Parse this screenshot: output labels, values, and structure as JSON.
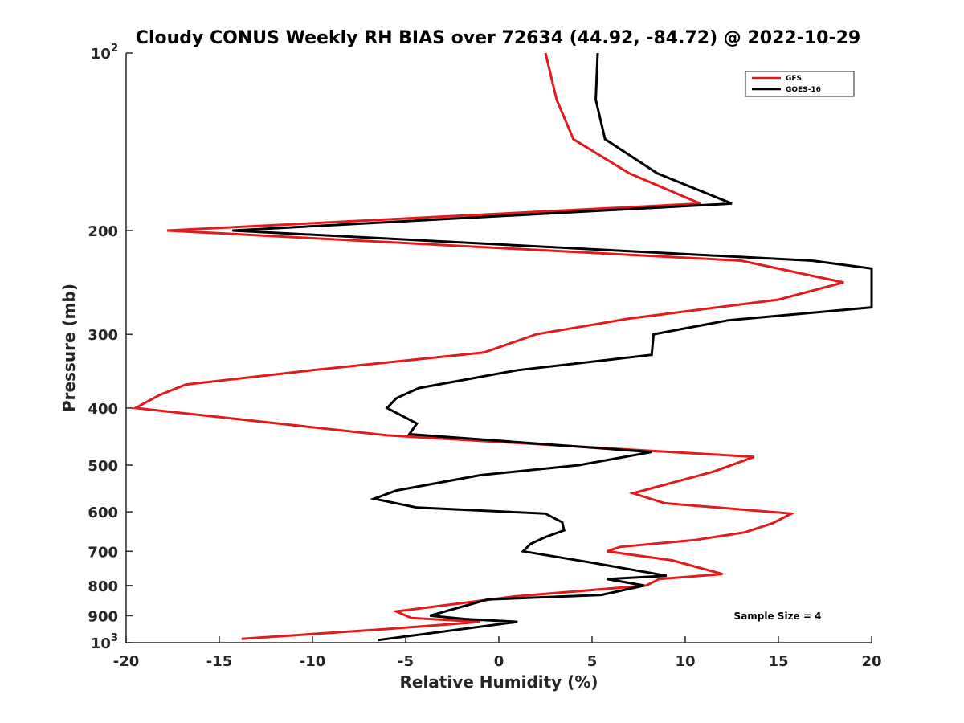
{
  "chart_data": {
    "type": "line",
    "title": "Cloudy CONUS Weekly RH BIAS over 72634 (44.92, -84.72) @ 2022-10-29",
    "xlabel": "Relative Humidity (%)",
    "ylabel": "Pressure (mb)",
    "xlim": [
      -20,
      20
    ],
    "ylim": [
      100,
      1000
    ],
    "y_scale": "log",
    "y_reversed": true,
    "grid": false,
    "legend_position": "top-right",
    "x_ticks": [
      -20,
      -15,
      -10,
      -5,
      0,
      5,
      10,
      15,
      20
    ],
    "y_ticks": [
      {
        "value": 100,
        "base": "10",
        "exp": "2"
      },
      {
        "value": 200,
        "label": "200"
      },
      {
        "value": 300,
        "label": "300"
      },
      {
        "value": 400,
        "label": "400"
      },
      {
        "value": 500,
        "label": "500"
      },
      {
        "value": 600,
        "label": "600"
      },
      {
        "value": 700,
        "label": "700"
      },
      {
        "value": 800,
        "label": "800"
      },
      {
        "value": 900,
        "label": "900"
      },
      {
        "value": 1000,
        "base": "10",
        "exp": "3"
      }
    ],
    "series": [
      {
        "name": "GFS",
        "color": "#e31a1c",
        "points": [
          {
            "x": 2.5,
            "p": 100
          },
          {
            "x": 3.1,
            "p": 120
          },
          {
            "x": 4.0,
            "p": 140
          },
          {
            "x": 7.0,
            "p": 160
          },
          {
            "x": 10.8,
            "p": 180
          },
          {
            "x": -17.8,
            "p": 200
          },
          {
            "x": 13.0,
            "p": 225
          },
          {
            "x": 18.5,
            "p": 245
          },
          {
            "x": 15.0,
            "p": 262
          },
          {
            "x": 7.0,
            "p": 282
          },
          {
            "x": 2.0,
            "p": 300
          },
          {
            "x": -0.8,
            "p": 322
          },
          {
            "x": -10.0,
            "p": 345
          },
          {
            "x": -16.8,
            "p": 365
          },
          {
            "x": -18.2,
            "p": 380
          },
          {
            "x": -19.5,
            "p": 400
          },
          {
            "x": -6.0,
            "p": 445
          },
          {
            "x": 13.7,
            "p": 484
          },
          {
            "x": 11.5,
            "p": 513
          },
          {
            "x": 7.2,
            "p": 558
          },
          {
            "x": 8.9,
            "p": 580
          },
          {
            "x": 15.7,
            "p": 604
          },
          {
            "x": 14.7,
            "p": 627
          },
          {
            "x": 13.2,
            "p": 650
          },
          {
            "x": 10.5,
            "p": 670
          },
          {
            "x": 6.5,
            "p": 688
          },
          {
            "x": 5.8,
            "p": 700
          },
          {
            "x": 9.3,
            "p": 725
          },
          {
            "x": 12.0,
            "p": 765
          },
          {
            "x": 8.6,
            "p": 780
          },
          {
            "x": 7.9,
            "p": 800
          },
          {
            "x": 0.8,
            "p": 835
          },
          {
            "x": -5.5,
            "p": 885
          },
          {
            "x": -4.7,
            "p": 908
          },
          {
            "x": -1.0,
            "p": 922
          },
          {
            "x": -6.0,
            "p": 948
          },
          {
            "x": -13.8,
            "p": 985
          }
        ]
      },
      {
        "name": "GOES-16",
        "color": "#000000",
        "points": [
          {
            "x": 5.3,
            "p": 100
          },
          {
            "x": 5.2,
            "p": 120
          },
          {
            "x": 5.7,
            "p": 140
          },
          {
            "x": 8.5,
            "p": 160
          },
          {
            "x": 12.5,
            "p": 180
          },
          {
            "x": -14.3,
            "p": 200
          },
          {
            "x": 16.8,
            "p": 225
          },
          {
            "x": 20.0,
            "p": 232
          },
          {
            "x": 20.0,
            "p": 270
          },
          {
            "x": 12.3,
            "p": 284
          },
          {
            "x": 8.3,
            "p": 300
          },
          {
            "x": 8.2,
            "p": 325
          },
          {
            "x": 1.0,
            "p": 345
          },
          {
            "x": -4.3,
            "p": 370
          },
          {
            "x": -5.5,
            "p": 385
          },
          {
            "x": -6.0,
            "p": 400
          },
          {
            "x": -4.4,
            "p": 425
          },
          {
            "x": -4.8,
            "p": 443
          },
          {
            "x": 8.2,
            "p": 475
          },
          {
            "x": 4.3,
            "p": 500
          },
          {
            "x": -1.0,
            "p": 520
          },
          {
            "x": -5.5,
            "p": 552
          },
          {
            "x": -6.7,
            "p": 570
          },
          {
            "x": -4.4,
            "p": 590
          },
          {
            "x": 2.5,
            "p": 604
          },
          {
            "x": 3.4,
            "p": 625
          },
          {
            "x": 3.5,
            "p": 645
          },
          {
            "x": 2.5,
            "p": 662
          },
          {
            "x": 1.7,
            "p": 680
          },
          {
            "x": 1.3,
            "p": 700
          },
          {
            "x": 4.8,
            "p": 730
          },
          {
            "x": 9.0,
            "p": 770
          },
          {
            "x": 5.8,
            "p": 780
          },
          {
            "x": 7.8,
            "p": 800
          },
          {
            "x": 5.5,
            "p": 830
          },
          {
            "x": -0.6,
            "p": 845
          },
          {
            "x": -3.7,
            "p": 900
          },
          {
            "x": -1.8,
            "p": 912
          },
          {
            "x": 1.0,
            "p": 922
          },
          {
            "x": -6.5,
            "p": 990
          }
        ]
      }
    ],
    "annotations": [
      {
        "text": "Sample Size = 4"
      }
    ]
  }
}
